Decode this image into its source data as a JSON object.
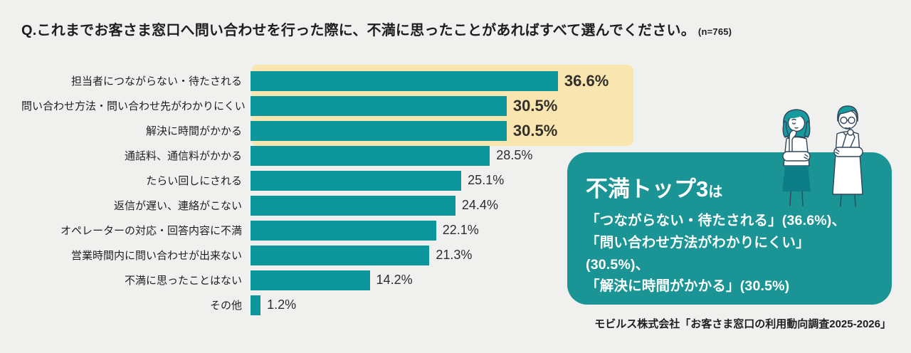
{
  "page": {
    "title": "Q.これまでお客さま窓口へ問い合わせを行った際に、不満に思ったことがあればすべて選んでください。",
    "sample_size": "(n=765)",
    "source": "モビルス株式会社「お客さま窓口の利用動向調査2025-2026」"
  },
  "colors": {
    "page_bg": "#F0F0EF",
    "bar": "#0D969B",
    "highlight": "#F9E5B0",
    "callout_bg": "#1A9494",
    "title_color": "#1E1E1E",
    "callout_text": "#FFFFFF",
    "illustration_hair": "#169A9E",
    "illustration_skirt": "#0E7E86",
    "illustration_line": "#32475A"
  },
  "chart_data": {
    "type": "bar",
    "orientation": "horizontal",
    "unit": "%",
    "title": "Q.これまでお客さま窓口へ問い合わせを行った際に、不満に思ったことがあればすべて選んでください。(n=765)",
    "categories": [
      "担当者につながらない・待たされる",
      "問い合わせ方法・問い合わせ先がわかりにくい",
      "解決に時間がかかる",
      "通話料、通信料がかかる",
      "たらい回しにされる",
      "返信が遅い、連絡がこない",
      "オペレーターの対応・回答内容に不満",
      "営業時間内に問い合わせが出来ない",
      "不満に思ったことはない",
      "その他"
    ],
    "values": [
      36.6,
      30.5,
      30.5,
      28.5,
      25.1,
      24.4,
      22.1,
      21.3,
      14.2,
      1.2
    ],
    "value_labels": [
      "36.6%",
      "30.5%",
      "30.5%",
      "28.5%",
      "25.1%",
      "24.4%",
      "22.1%",
      "21.3%",
      "14.2%",
      "1.2%"
    ],
    "highlighted_top": 3,
    "xlim": [
      0,
      40
    ],
    "grid": false,
    "legend": false
  },
  "callout": {
    "heading": "不満トップ3",
    "heading_suffix": "は",
    "lines": [
      "「つながらない・待たされる」(36.6%)、",
      "「問い合わせ方法がわかりにくい」(30.5%)、",
      "「解決に時間がかかる」(30.5%)"
    ]
  },
  "illustration": {
    "name": "two-people-thinking"
  }
}
